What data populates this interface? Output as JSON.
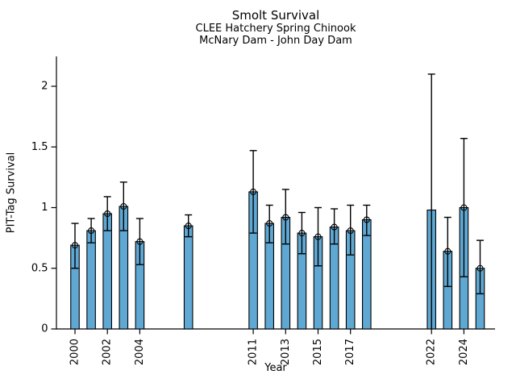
{
  "chart_data": {
    "type": "bar",
    "title": "Smolt Survival",
    "subtitle1": "CLEE Hatchery Spring Chinook",
    "subtitle2": "McNary Dam - John Day Dam",
    "xlabel": "Year",
    "ylabel": "PIT-Tag Survival",
    "ylim": [
      0,
      2.25
    ],
    "xlim": [
      1998.8,
      2026
    ],
    "grid": false,
    "legend": "none",
    "bar_color": "#5FA8D4",
    "bar_edge_color": "#000000",
    "errorbar_color": "#000000",
    "y_ticks": [
      {
        "value": 0,
        "label": "0"
      },
      {
        "value": 0.5,
        "label": "0.5"
      },
      {
        "value": 1,
        "label": "1"
      },
      {
        "value": 1.5,
        "label": "1.5"
      },
      {
        "value": 2,
        "label": "2"
      }
    ],
    "x_ticks": [
      2000,
      2002,
      2004,
      2011,
      2013,
      2015,
      2017,
      2022,
      2024
    ],
    "points": [
      {
        "year": 2000,
        "value": 0.69,
        "lo": 0.5,
        "hi": 0.87
      },
      {
        "year": 2001,
        "value": 0.81,
        "lo": 0.71,
        "hi": 0.91
      },
      {
        "year": 2002,
        "value": 0.95,
        "lo": 0.81,
        "hi": 1.09
      },
      {
        "year": 2003,
        "value": 1.01,
        "lo": 0.81,
        "hi": 1.21
      },
      {
        "year": 2004,
        "value": 0.72,
        "lo": 0.53,
        "hi": 0.91
      },
      {
        "year": 2007,
        "value": 0.85,
        "lo": 0.76,
        "hi": 0.94
      },
      {
        "year": 2011,
        "value": 1.13,
        "lo": 0.79,
        "hi": 1.47
      },
      {
        "year": 2012,
        "value": 0.87,
        "lo": 0.71,
        "hi": 1.02
      },
      {
        "year": 2013,
        "value": 0.92,
        "lo": 0.7,
        "hi": 1.15
      },
      {
        "year": 2014,
        "value": 0.79,
        "lo": 0.62,
        "hi": 0.96
      },
      {
        "year": 2015,
        "value": 0.76,
        "lo": 0.52,
        "hi": 1.0
      },
      {
        "year": 2016,
        "value": 0.84,
        "lo": 0.7,
        "hi": 0.99
      },
      {
        "year": 2017,
        "value": 0.81,
        "lo": 0.61,
        "hi": 1.02
      },
      {
        "year": 2018,
        "value": 0.9,
        "lo": 0.77,
        "hi": 1.02
      },
      {
        "year": 2022,
        "value": 0.98,
        "lo": 0.0,
        "hi": 2.1,
        "marker": false,
        "cap_low": false
      },
      {
        "year": 2023,
        "value": 0.64,
        "lo": 0.35,
        "hi": 0.92
      },
      {
        "year": 2024,
        "value": 1.0,
        "lo": 0.43,
        "hi": 1.57
      },
      {
        "year": 2025,
        "value": 0.5,
        "lo": 0.29,
        "hi": 0.73
      }
    ]
  }
}
